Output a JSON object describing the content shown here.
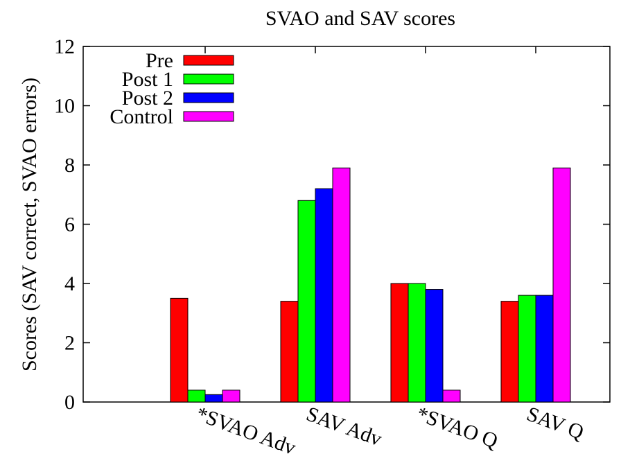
{
  "chart_data": {
    "type": "bar",
    "title": "SVAO and SAV scores",
    "xlabel": "",
    "ylabel": "Scores (SAV correct, SVAO errors)",
    "ylim": [
      0,
      12
    ],
    "yticks": [
      "0",
      "2",
      "4",
      "6",
      "8",
      "10",
      "12"
    ],
    "categories": [
      "*SVAO Adv",
      "SAV Adv",
      "*SVAO Q",
      "SAV Q"
    ],
    "series": [
      {
        "name": "Pre",
        "color": "#ff0000",
        "values": [
          3.5,
          3.4,
          4.0,
          3.4
        ]
      },
      {
        "name": "Post 1",
        "color": "#00ff00",
        "values": [
          0.4,
          6.8,
          4.0,
          3.6
        ]
      },
      {
        "name": "Post 2",
        "color": "#0000ff",
        "values": [
          0.25,
          7.2,
          3.8,
          3.6
        ]
      },
      {
        "name": "Control",
        "color": "#ff00ff",
        "values": [
          0.4,
          7.9,
          0.4,
          7.9
        ]
      }
    ],
    "legend_position": "top-left",
    "grid": false
  }
}
